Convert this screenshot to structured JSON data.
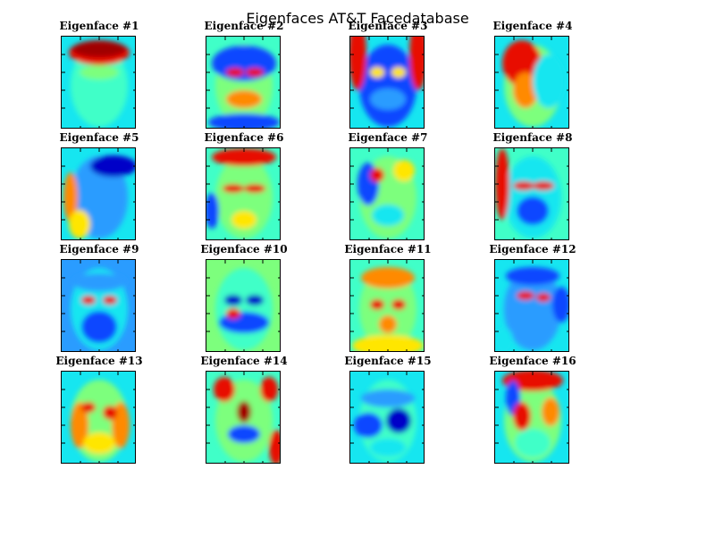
{
  "figure": {
    "title": "Eigenfaces AT&T Facedatabase"
  },
  "colormap": "jet",
  "panels": [
    {
      "title": "Eigenface #1"
    },
    {
      "title": "Eigenface #2"
    },
    {
      "title": "Eigenface #3"
    },
    {
      "title": "Eigenface #4"
    },
    {
      "title": "Eigenface #5"
    },
    {
      "title": "Eigenface #6"
    },
    {
      "title": "Eigenface #7"
    },
    {
      "title": "Eigenface #8"
    },
    {
      "title": "Eigenface #9"
    },
    {
      "title": "Eigenface #10"
    },
    {
      "title": "Eigenface #11"
    },
    {
      "title": "Eigenface #12"
    },
    {
      "title": "Eigenface #13"
    },
    {
      "title": "Eigenface #14"
    },
    {
      "title": "Eigenface #15"
    },
    {
      "title": "Eigenface #16"
    }
  ]
}
